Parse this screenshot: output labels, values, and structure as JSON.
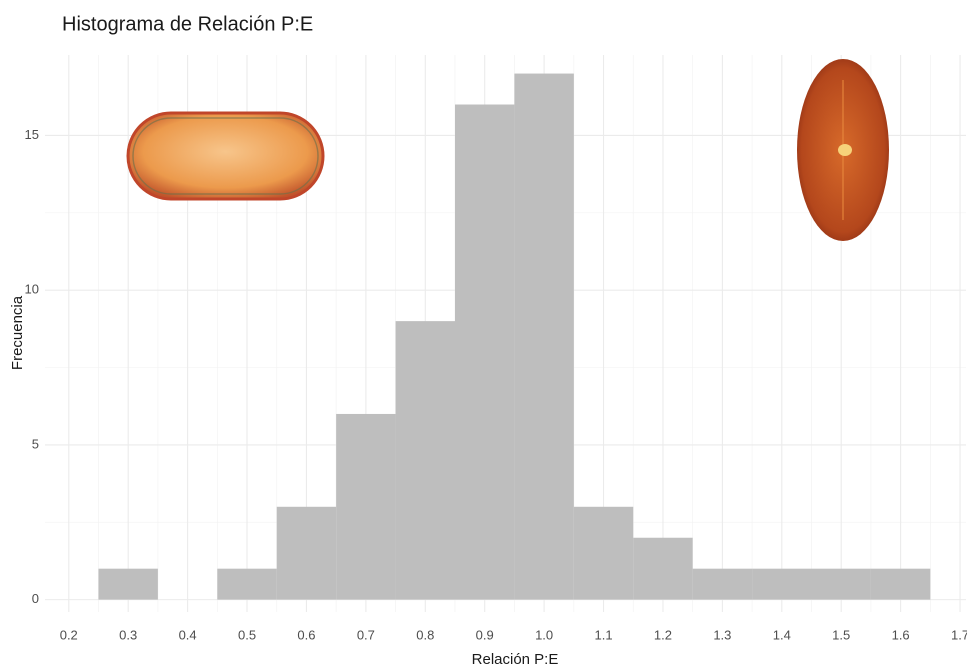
{
  "chart_data": {
    "type": "histogram",
    "title": "Histograma de Relación P:E",
    "x_label": "Relación P:E",
    "y_label": "Frecuencia",
    "bins": [
      0.25,
      0.35,
      0.45,
      0.55,
      0.65,
      0.75,
      0.85,
      0.95,
      1.05,
      1.15,
      1.25,
      1.35,
      1.45,
      1.55,
      1.65
    ],
    "values": [
      1,
      0,
      1,
      3,
      6,
      9,
      16,
      17,
      3,
      2,
      1,
      1,
      1,
      1
    ],
    "color": "#bebebe",
    "xlim": [
      0.16,
      1.71
    ],
    "xticks": [
      0.2,
      0.3,
      0.4,
      0.5,
      0.6,
      0.7,
      0.8,
      0.9,
      {
        "value": 1,
        "label": "1.0"
      },
      1.1,
      1.2,
      1.3,
      1.4,
      1.5,
      1.6,
      1.7
    ],
    "ylim": [
      -0.4,
      17.6
    ],
    "yticks": [
      0,
      5,
      10,
      15
    ],
    "grid": true
  }
}
